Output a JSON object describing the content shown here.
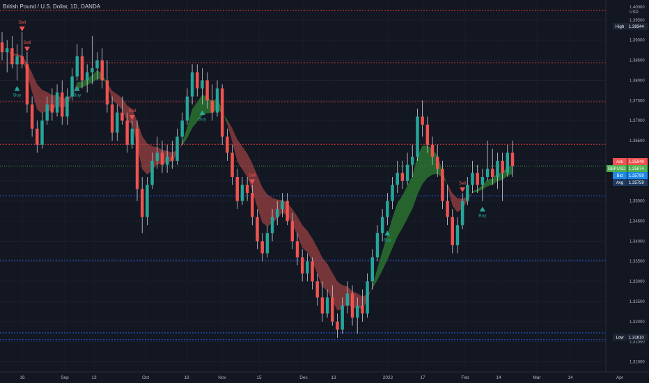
{
  "title": "British Pound / U.S. Dollar, 1D, OANDA",
  "currency": "USD",
  "colors": {
    "background": "#131722",
    "up": "#26a69a",
    "down": "#ef5350",
    "band_up": "#2e7d32",
    "band_down": "#b74a4a",
    "red_line": "#e53935",
    "blue_line": "#2962ff",
    "green_line": "#4caf50",
    "ask": "#ef5350",
    "symbol": "#4caf50",
    "bid": "#1e88e5",
    "avg": "#1e3a5f"
  },
  "axis": {
    "y_ticks": [
      "1.39500",
      "1.39000",
      "1.38500",
      "1.38000",
      "1.37500",
      "1.37000",
      "1.36500",
      "1.36000",
      "1.35500",
      "1.35000",
      "1.34500",
      "1.34000",
      "1.33500",
      "1.33000",
      "1.32500",
      "1.32000",
      "1.31500",
      "1.31000"
    ],
    "x_ticks": [
      "16",
      "Sep",
      "13",
      "Oct",
      "18",
      "Nov",
      "15",
      "Dec",
      "13",
      "2022",
      "17",
      "Feb",
      "14",
      "Mar",
      "14",
      "Apr"
    ],
    "top_partial": "1.40000"
  },
  "tags": {
    "high": {
      "label": "High",
      "value": "1.39344"
    },
    "ask": {
      "label": "Ask",
      "value": "1.35949"
    },
    "symbol": {
      "label": "GBPUSD",
      "value": "1.35874"
    },
    "bid": {
      "label": "Bid",
      "value": "1.35799"
    },
    "avg": {
      "label": "Avg",
      "value": "1.35759"
    },
    "low": {
      "label": "Low",
      "value": "1.31610"
    }
  },
  "levels": {
    "red": [
      1.3974,
      1.3844,
      1.3747,
      1.3641
    ],
    "blue": [
      1.3513,
      1.3353,
      1.3172,
      1.3155
    ],
    "green": 1.3587
  },
  "signals": [
    {
      "label": "Sell",
      "type": "sell"
    },
    {
      "label": "Sell",
      "type": "sell"
    },
    {
      "label": "Buy",
      "type": "buy"
    },
    {
      "label": "Buy",
      "type": "buy"
    },
    {
      "label": "Sell",
      "type": "sell"
    },
    {
      "label": "Buy",
      "type": "buy"
    },
    {
      "label": "Sell",
      "type": "sell"
    },
    {
      "label": "Buy",
      "type": "buy"
    },
    {
      "label": "Sell",
      "type": "sell"
    },
    {
      "label": "Buy",
      "type": "buy"
    }
  ],
  "chart_data": {
    "type": "candlestick",
    "y_range": [
      1.3075,
      1.4
    ],
    "candles": [
      {
        "o": 1.3895,
        "h": 1.392,
        "l": 1.385,
        "c": 1.387
      },
      {
        "o": 1.387,
        "h": 1.39,
        "l": 1.382,
        "c": 1.388
      },
      {
        "o": 1.388,
        "h": 1.391,
        "l": 1.383,
        "c": 1.384
      },
      {
        "o": 1.384,
        "h": 1.389,
        "l": 1.38,
        "c": 1.386
      },
      {
        "o": 1.386,
        "h": 1.392,
        "l": 1.383,
        "c": 1.384
      },
      {
        "o": 1.384,
        "h": 1.387,
        "l": 1.372,
        "c": 1.374
      },
      {
        "o": 1.374,
        "h": 1.376,
        "l": 1.366,
        "c": 1.368
      },
      {
        "o": 1.368,
        "h": 1.37,
        "l": 1.362,
        "c": 1.364
      },
      {
        "o": 1.364,
        "h": 1.372,
        "l": 1.363,
        "c": 1.37
      },
      {
        "o": 1.37,
        "h": 1.376,
        "l": 1.369,
        "c": 1.374
      },
      {
        "o": 1.374,
        "h": 1.378,
        "l": 1.37,
        "c": 1.372
      },
      {
        "o": 1.372,
        "h": 1.379,
        "l": 1.371,
        "c": 1.377
      },
      {
        "o": 1.377,
        "h": 1.38,
        "l": 1.369,
        "c": 1.371
      },
      {
        "o": 1.371,
        "h": 1.378,
        "l": 1.369,
        "c": 1.376
      },
      {
        "o": 1.376,
        "h": 1.383,
        "l": 1.375,
        "c": 1.381
      },
      {
        "o": 1.381,
        "h": 1.389,
        "l": 1.38,
        "c": 1.386
      },
      {
        "o": 1.386,
        "h": 1.388,
        "l": 1.378,
        "c": 1.38
      },
      {
        "o": 1.38,
        "h": 1.384,
        "l": 1.377,
        "c": 1.382
      },
      {
        "o": 1.382,
        "h": 1.391,
        "l": 1.379,
        "c": 1.383
      },
      {
        "o": 1.383,
        "h": 1.387,
        "l": 1.38,
        "c": 1.385
      },
      {
        "o": 1.385,
        "h": 1.388,
        "l": 1.378,
        "c": 1.38
      },
      {
        "o": 1.38,
        "h": 1.385,
        "l": 1.372,
        "c": 1.374
      },
      {
        "o": 1.374,
        "h": 1.376,
        "l": 1.365,
        "c": 1.367
      },
      {
        "o": 1.367,
        "h": 1.374,
        "l": 1.365,
        "c": 1.372
      },
      {
        "o": 1.372,
        "h": 1.376,
        "l": 1.369,
        "c": 1.37
      },
      {
        "o": 1.37,
        "h": 1.372,
        "l": 1.362,
        "c": 1.364
      },
      {
        "o": 1.364,
        "h": 1.37,
        "l": 1.363,
        "c": 1.368
      },
      {
        "o": 1.368,
        "h": 1.37,
        "l": 1.35,
        "c": 1.353
      },
      {
        "o": 1.353,
        "h": 1.356,
        "l": 1.342,
        "c": 1.346
      },
      {
        "o": 1.346,
        "h": 1.356,
        "l": 1.344,
        "c": 1.354
      },
      {
        "o": 1.354,
        "h": 1.362,
        "l": 1.353,
        "c": 1.36
      },
      {
        "o": 1.36,
        "h": 1.366,
        "l": 1.358,
        "c": 1.362
      },
      {
        "o": 1.362,
        "h": 1.365,
        "l": 1.357,
        "c": 1.359
      },
      {
        "o": 1.359,
        "h": 1.364,
        "l": 1.357,
        "c": 1.361
      },
      {
        "o": 1.361,
        "h": 1.365,
        "l": 1.358,
        "c": 1.36
      },
      {
        "o": 1.36,
        "h": 1.368,
        "l": 1.359,
        "c": 1.366
      },
      {
        "o": 1.366,
        "h": 1.372,
        "l": 1.364,
        "c": 1.37
      },
      {
        "o": 1.37,
        "h": 1.378,
        "l": 1.369,
        "c": 1.376
      },
      {
        "o": 1.376,
        "h": 1.384,
        "l": 1.374,
        "c": 1.382
      },
      {
        "o": 1.382,
        "h": 1.384,
        "l": 1.376,
        "c": 1.378
      },
      {
        "o": 1.378,
        "h": 1.383,
        "l": 1.374,
        "c": 1.38
      },
      {
        "o": 1.38,
        "h": 1.382,
        "l": 1.373,
        "c": 1.375
      },
      {
        "o": 1.375,
        "h": 1.379,
        "l": 1.37,
        "c": 1.372
      },
      {
        "o": 1.372,
        "h": 1.38,
        "l": 1.371,
        "c": 1.378
      },
      {
        "o": 1.378,
        "h": 1.379,
        "l": 1.364,
        "c": 1.366
      },
      {
        "o": 1.366,
        "h": 1.368,
        "l": 1.36,
        "c": 1.362
      },
      {
        "o": 1.362,
        "h": 1.364,
        "l": 1.354,
        "c": 1.356
      },
      {
        "o": 1.356,
        "h": 1.358,
        "l": 1.348,
        "c": 1.35
      },
      {
        "o": 1.35,
        "h": 1.356,
        "l": 1.349,
        "c": 1.354
      },
      {
        "o": 1.354,
        "h": 1.356,
        "l": 1.35,
        "c": 1.352
      },
      {
        "o": 1.352,
        "h": 1.354,
        "l": 1.344,
        "c": 1.346
      },
      {
        "o": 1.346,
        "h": 1.348,
        "l": 1.338,
        "c": 1.34
      },
      {
        "o": 1.34,
        "h": 1.342,
        "l": 1.335,
        "c": 1.337
      },
      {
        "o": 1.337,
        "h": 1.344,
        "l": 1.336,
        "c": 1.342
      },
      {
        "o": 1.342,
        "h": 1.348,
        "l": 1.34,
        "c": 1.346
      },
      {
        "o": 1.346,
        "h": 1.35,
        "l": 1.344,
        "c": 1.348
      },
      {
        "o": 1.348,
        "h": 1.352,
        "l": 1.346,
        "c": 1.35
      },
      {
        "o": 1.35,
        "h": 1.352,
        "l": 1.344,
        "c": 1.345
      },
      {
        "o": 1.345,
        "h": 1.347,
        "l": 1.338,
        "c": 1.34
      },
      {
        "o": 1.34,
        "h": 1.342,
        "l": 1.334,
        "c": 1.336
      },
      {
        "o": 1.336,
        "h": 1.338,
        "l": 1.33,
        "c": 1.332
      },
      {
        "o": 1.332,
        "h": 1.337,
        "l": 1.33,
        "c": 1.335
      },
      {
        "o": 1.335,
        "h": 1.336,
        "l": 1.328,
        "c": 1.33
      },
      {
        "o": 1.33,
        "h": 1.332,
        "l": 1.324,
        "c": 1.326
      },
      {
        "o": 1.326,
        "h": 1.33,
        "l": 1.32,
        "c": 1.322
      },
      {
        "o": 1.322,
        "h": 1.328,
        "l": 1.321,
        "c": 1.326
      },
      {
        "o": 1.326,
        "h": 1.329,
        "l": 1.319,
        "c": 1.32
      },
      {
        "o": 1.32,
        "h": 1.322,
        "l": 1.316,
        "c": 1.318
      },
      {
        "o": 1.318,
        "h": 1.326,
        "l": 1.317,
        "c": 1.324
      },
      {
        "o": 1.324,
        "h": 1.33,
        "l": 1.322,
        "c": 1.327
      },
      {
        "o": 1.327,
        "h": 1.329,
        "l": 1.319,
        "c": 1.321
      },
      {
        "o": 1.321,
        "h": 1.326,
        "l": 1.317,
        "c": 1.324
      },
      {
        "o": 1.324,
        "h": 1.328,
        "l": 1.32,
        "c": 1.322
      },
      {
        "o": 1.322,
        "h": 1.332,
        "l": 1.321,
        "c": 1.33
      },
      {
        "o": 1.33,
        "h": 1.338,
        "l": 1.328,
        "c": 1.336
      },
      {
        "o": 1.336,
        "h": 1.344,
        "l": 1.335,
        "c": 1.342
      },
      {
        "o": 1.342,
        "h": 1.348,
        "l": 1.34,
        "c": 1.346
      },
      {
        "o": 1.346,
        "h": 1.352,
        "l": 1.344,
        "c": 1.35
      },
      {
        "o": 1.35,
        "h": 1.356,
        "l": 1.348,
        "c": 1.354
      },
      {
        "o": 1.354,
        "h": 1.36,
        "l": 1.352,
        "c": 1.357
      },
      {
        "o": 1.357,
        "h": 1.36,
        "l": 1.353,
        "c": 1.355
      },
      {
        "o": 1.355,
        "h": 1.362,
        "l": 1.354,
        "c": 1.359
      },
      {
        "o": 1.359,
        "h": 1.364,
        "l": 1.356,
        "c": 1.361
      },
      {
        "o": 1.361,
        "h": 1.373,
        "l": 1.36,
        "c": 1.371
      },
      {
        "o": 1.371,
        "h": 1.375,
        "l": 1.366,
        "c": 1.369
      },
      {
        "o": 1.369,
        "h": 1.371,
        "l": 1.362,
        "c": 1.364
      },
      {
        "o": 1.364,
        "h": 1.366,
        "l": 1.359,
        "c": 1.361
      },
      {
        "o": 1.361,
        "h": 1.364,
        "l": 1.356,
        "c": 1.358
      },
      {
        "o": 1.358,
        "h": 1.36,
        "l": 1.348,
        "c": 1.35
      },
      {
        "o": 1.35,
        "h": 1.354,
        "l": 1.344,
        "c": 1.346
      },
      {
        "o": 1.346,
        "h": 1.348,
        "l": 1.337,
        "c": 1.339
      },
      {
        "o": 1.339,
        "h": 1.346,
        "l": 1.337,
        "c": 1.344
      },
      {
        "o": 1.344,
        "h": 1.352,
        "l": 1.343,
        "c": 1.35
      },
      {
        "o": 1.35,
        "h": 1.356,
        "l": 1.349,
        "c": 1.354
      },
      {
        "o": 1.354,
        "h": 1.36,
        "l": 1.352,
        "c": 1.357
      },
      {
        "o": 1.357,
        "h": 1.359,
        "l": 1.352,
        "c": 1.354
      },
      {
        "o": 1.354,
        "h": 1.358,
        "l": 1.35,
        "c": 1.356
      },
      {
        "o": 1.356,
        "h": 1.365,
        "l": 1.355,
        "c": 1.358
      },
      {
        "o": 1.358,
        "h": 1.363,
        "l": 1.354,
        "c": 1.356
      },
      {
        "o": 1.356,
        "h": 1.362,
        "l": 1.353,
        "c": 1.36
      },
      {
        "o": 1.36,
        "h": 1.362,
        "l": 1.35,
        "c": 1.357
      },
      {
        "o": 1.357,
        "h": 1.364,
        "l": 1.356,
        "c": 1.362
      },
      {
        "o": 1.362,
        "h": 1.365,
        "l": 1.356,
        "c": 1.3587
      }
    ]
  }
}
